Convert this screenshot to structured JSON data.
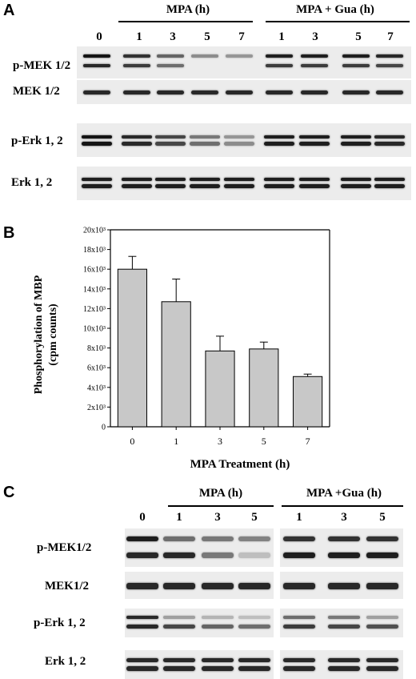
{
  "panel_a": {
    "letter": "A",
    "group1": "MPA (h)",
    "group2": "MPA + Gua (h)",
    "lanes": [
      "0",
      "1",
      "3",
      "5",
      "7",
      "1",
      "3",
      "5",
      "7"
    ],
    "rows": [
      "p-MEK 1/2",
      "MEK 1/2",
      "p-Erk 1, 2",
      "Erk 1, 2"
    ]
  },
  "panel_b": {
    "letter": "B",
    "chart_data": {
      "type": "bar",
      "categories": [
        "0",
        "1",
        "3",
        "5",
        "7"
      ],
      "values": [
        16000,
        12700,
        7700,
        7900,
        5100
      ],
      "errors": [
        1300,
        2300,
        1500,
        700,
        250
      ],
      "ylim": [
        0,
        20000
      ],
      "yticks": [
        "0",
        "2x10³",
        "4x10³",
        "6x10³",
        "8x10³",
        "10x10³",
        "12x10³",
        "14x10³",
        "16x10³",
        "18x10³",
        "20x10³"
      ],
      "ylabel_line1": "Phosphorylation of MBP",
      "ylabel_line2": "(cpm counts)",
      "xlabel": "MPA Treatment (h)",
      "bar_color": "#c8c8c8"
    }
  },
  "panel_c": {
    "letter": "C",
    "group1": "MPA (h)",
    "group2": "MPA +Gua (h)",
    "lanes": [
      "0",
      "1",
      "3",
      "5",
      "1",
      "3",
      "5"
    ],
    "rows": [
      "p-MEK1/2",
      "MEK1/2",
      "p-Erk 1, 2",
      "Erk 1, 2"
    ]
  }
}
